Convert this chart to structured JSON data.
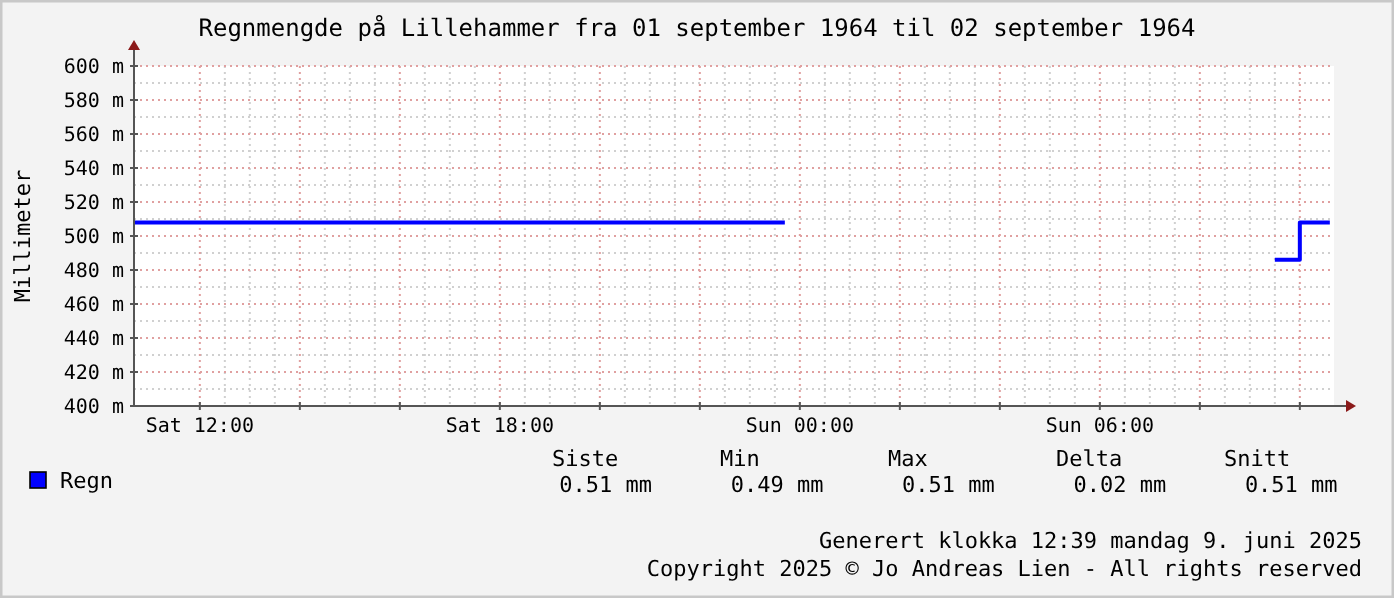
{
  "chart_data": {
    "type": "step",
    "title": "Regnmengde på Lillehammer fra 01 september 1964 til 02 september 1964",
    "ylabel": "Millimeter",
    "x": [
      "1964-09-05T10:42",
      "1964-09-05T23:42",
      "1964-09-05T23:45",
      "1964-09-06T09:30",
      "1964-09-06T10:00",
      "1964-09-06T10:36"
    ],
    "series": [
      {
        "name": "Regn",
        "color": "#0000ff",
        "values": [
          508,
          508,
          null,
          486,
          508,
          508
        ]
      }
    ],
    "xlim": [
      "1964-09-05T10:41",
      "1964-09-06T10:41"
    ],
    "xticks": [
      {
        "value": "1964-09-05T12:00",
        "label": "Sat 12:00"
      },
      {
        "value": "1964-09-05T14:00",
        "label": null
      },
      {
        "value": "1964-09-05T16:00",
        "label": null
      },
      {
        "value": "1964-09-05T18:00",
        "label": "Sat 18:00"
      },
      {
        "value": "1964-09-05T20:00",
        "label": null
      },
      {
        "value": "1964-09-05T22:00",
        "label": null
      },
      {
        "value": "1964-09-06T00:00",
        "label": "Sun 00:00"
      },
      {
        "value": "1964-09-06T02:00",
        "label": null
      },
      {
        "value": "1964-09-06T04:00",
        "label": null
      },
      {
        "value": "1964-09-06T06:00",
        "label": "Sun 06:00"
      },
      {
        "value": "1964-09-06T08:00",
        "label": null
      },
      {
        "value": "1964-09-06T10:00",
        "label": null
      }
    ],
    "ylim": [
      400,
      600
    ],
    "yticks": [
      {
        "value": 400,
        "label": "400 m"
      },
      {
        "value": 420,
        "label": "420 m"
      },
      {
        "value": 440,
        "label": "440 m"
      },
      {
        "value": 460,
        "label": "460 m"
      },
      {
        "value": 480,
        "label": "480 m"
      },
      {
        "value": 500,
        "label": "500 m"
      },
      {
        "value": 520,
        "label": "520 m"
      },
      {
        "value": 540,
        "label": "540 m"
      },
      {
        "value": 560,
        "label": "560 m"
      },
      {
        "value": 580,
        "label": "580 m"
      },
      {
        "value": 600,
        "label": "600 m"
      }
    ],
    "grid": true,
    "legend": "bottom left",
    "annotations": [
      "Siste",
      "Min",
      "Max",
      "Delta",
      "Snitt",
      "0.51 mm",
      "0.49 mm",
      "0.51 mm",
      "0.02 mm",
      "0.51 mm",
      "Generert klokka 12:39 mandag 9. juni 2025",
      "Copyright 2025 © Jo Andreas Lien - All rights reserved"
    ]
  }
}
